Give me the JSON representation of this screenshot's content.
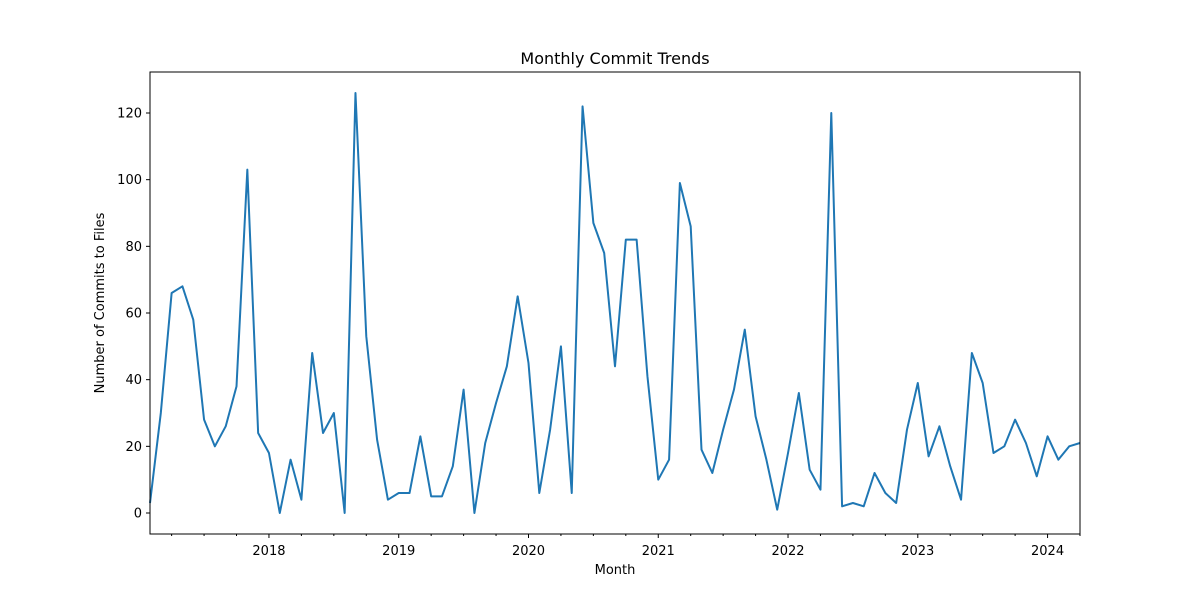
{
  "chart_data": {
    "type": "line",
    "title": "Monthly Commit Trends",
    "xlabel": "Month",
    "ylabel": "Number of Commits to Files",
    "color": "#1f77b4",
    "grid": false,
    "legend": "none",
    "x_start": "2017-02",
    "x_end": "2024-04",
    "xlim": [
      "2017-02",
      "2024-04"
    ],
    "ylim": [
      -6.3,
      132.3
    ],
    "y_ticks": [
      0,
      20,
      40,
      60,
      80,
      100,
      120
    ],
    "x_major_ticks": [
      {
        "date": "2018-01",
        "label": "2018"
      },
      {
        "date": "2019-01",
        "label": "2019"
      },
      {
        "date": "2020-01",
        "label": "2020"
      },
      {
        "date": "2021-01",
        "label": "2021"
      },
      {
        "date": "2022-01",
        "label": "2022"
      },
      {
        "date": "2023-01",
        "label": "2023"
      },
      {
        "date": "2024-01",
        "label": "2024"
      }
    ],
    "series": [
      {
        "values": [
          3,
          30,
          66,
          68,
          58,
          28,
          20,
          26,
          38,
          103,
          24,
          18,
          0,
          16,
          4,
          48,
          24,
          30,
          0,
          126,
          53,
          22,
          4,
          6,
          6,
          23,
          5,
          5,
          14,
          37,
          0,
          21,
          33,
          44,
          65,
          45,
          6,
          25,
          50,
          6,
          122,
          87,
          78,
          44,
          82,
          82,
          41,
          10,
          16,
          99,
          86,
          19,
          12,
          25,
          37,
          55,
          29,
          16,
          1,
          18,
          36,
          13,
          7,
          120,
          2,
          3,
          2,
          12,
          6,
          3,
          25,
          39,
          17,
          26,
          14,
          4,
          48,
          39,
          18,
          20,
          28,
          21,
          11,
          23,
          16,
          20,
          21
        ]
      }
    ]
  }
}
